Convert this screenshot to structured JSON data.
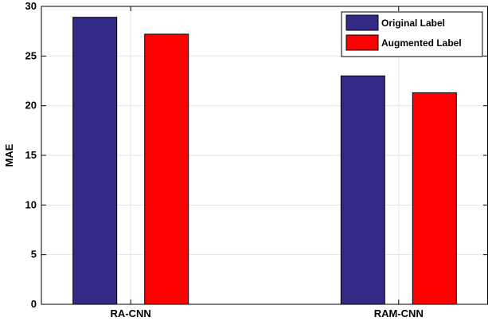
{
  "chart_data": {
    "type": "bar",
    "categories": [
      "RA-CNN",
      "RAM-CNN"
    ],
    "series": [
      {
        "name": "Original Label",
        "values": [
          28.9,
          23.0
        ],
        "color": "#332a86"
      },
      {
        "name": "Augmented Label",
        "values": [
          27.2,
          21.3
        ],
        "color": "#ff0000"
      }
    ],
    "xlabel": "",
    "ylabel": "MAE",
    "ylim": [
      0,
      30
    ],
    "yticks": [
      "0",
      "5",
      "10",
      "15",
      "20",
      "25",
      "30"
    ],
    "grid": true,
    "legend_position": "top-right"
  }
}
